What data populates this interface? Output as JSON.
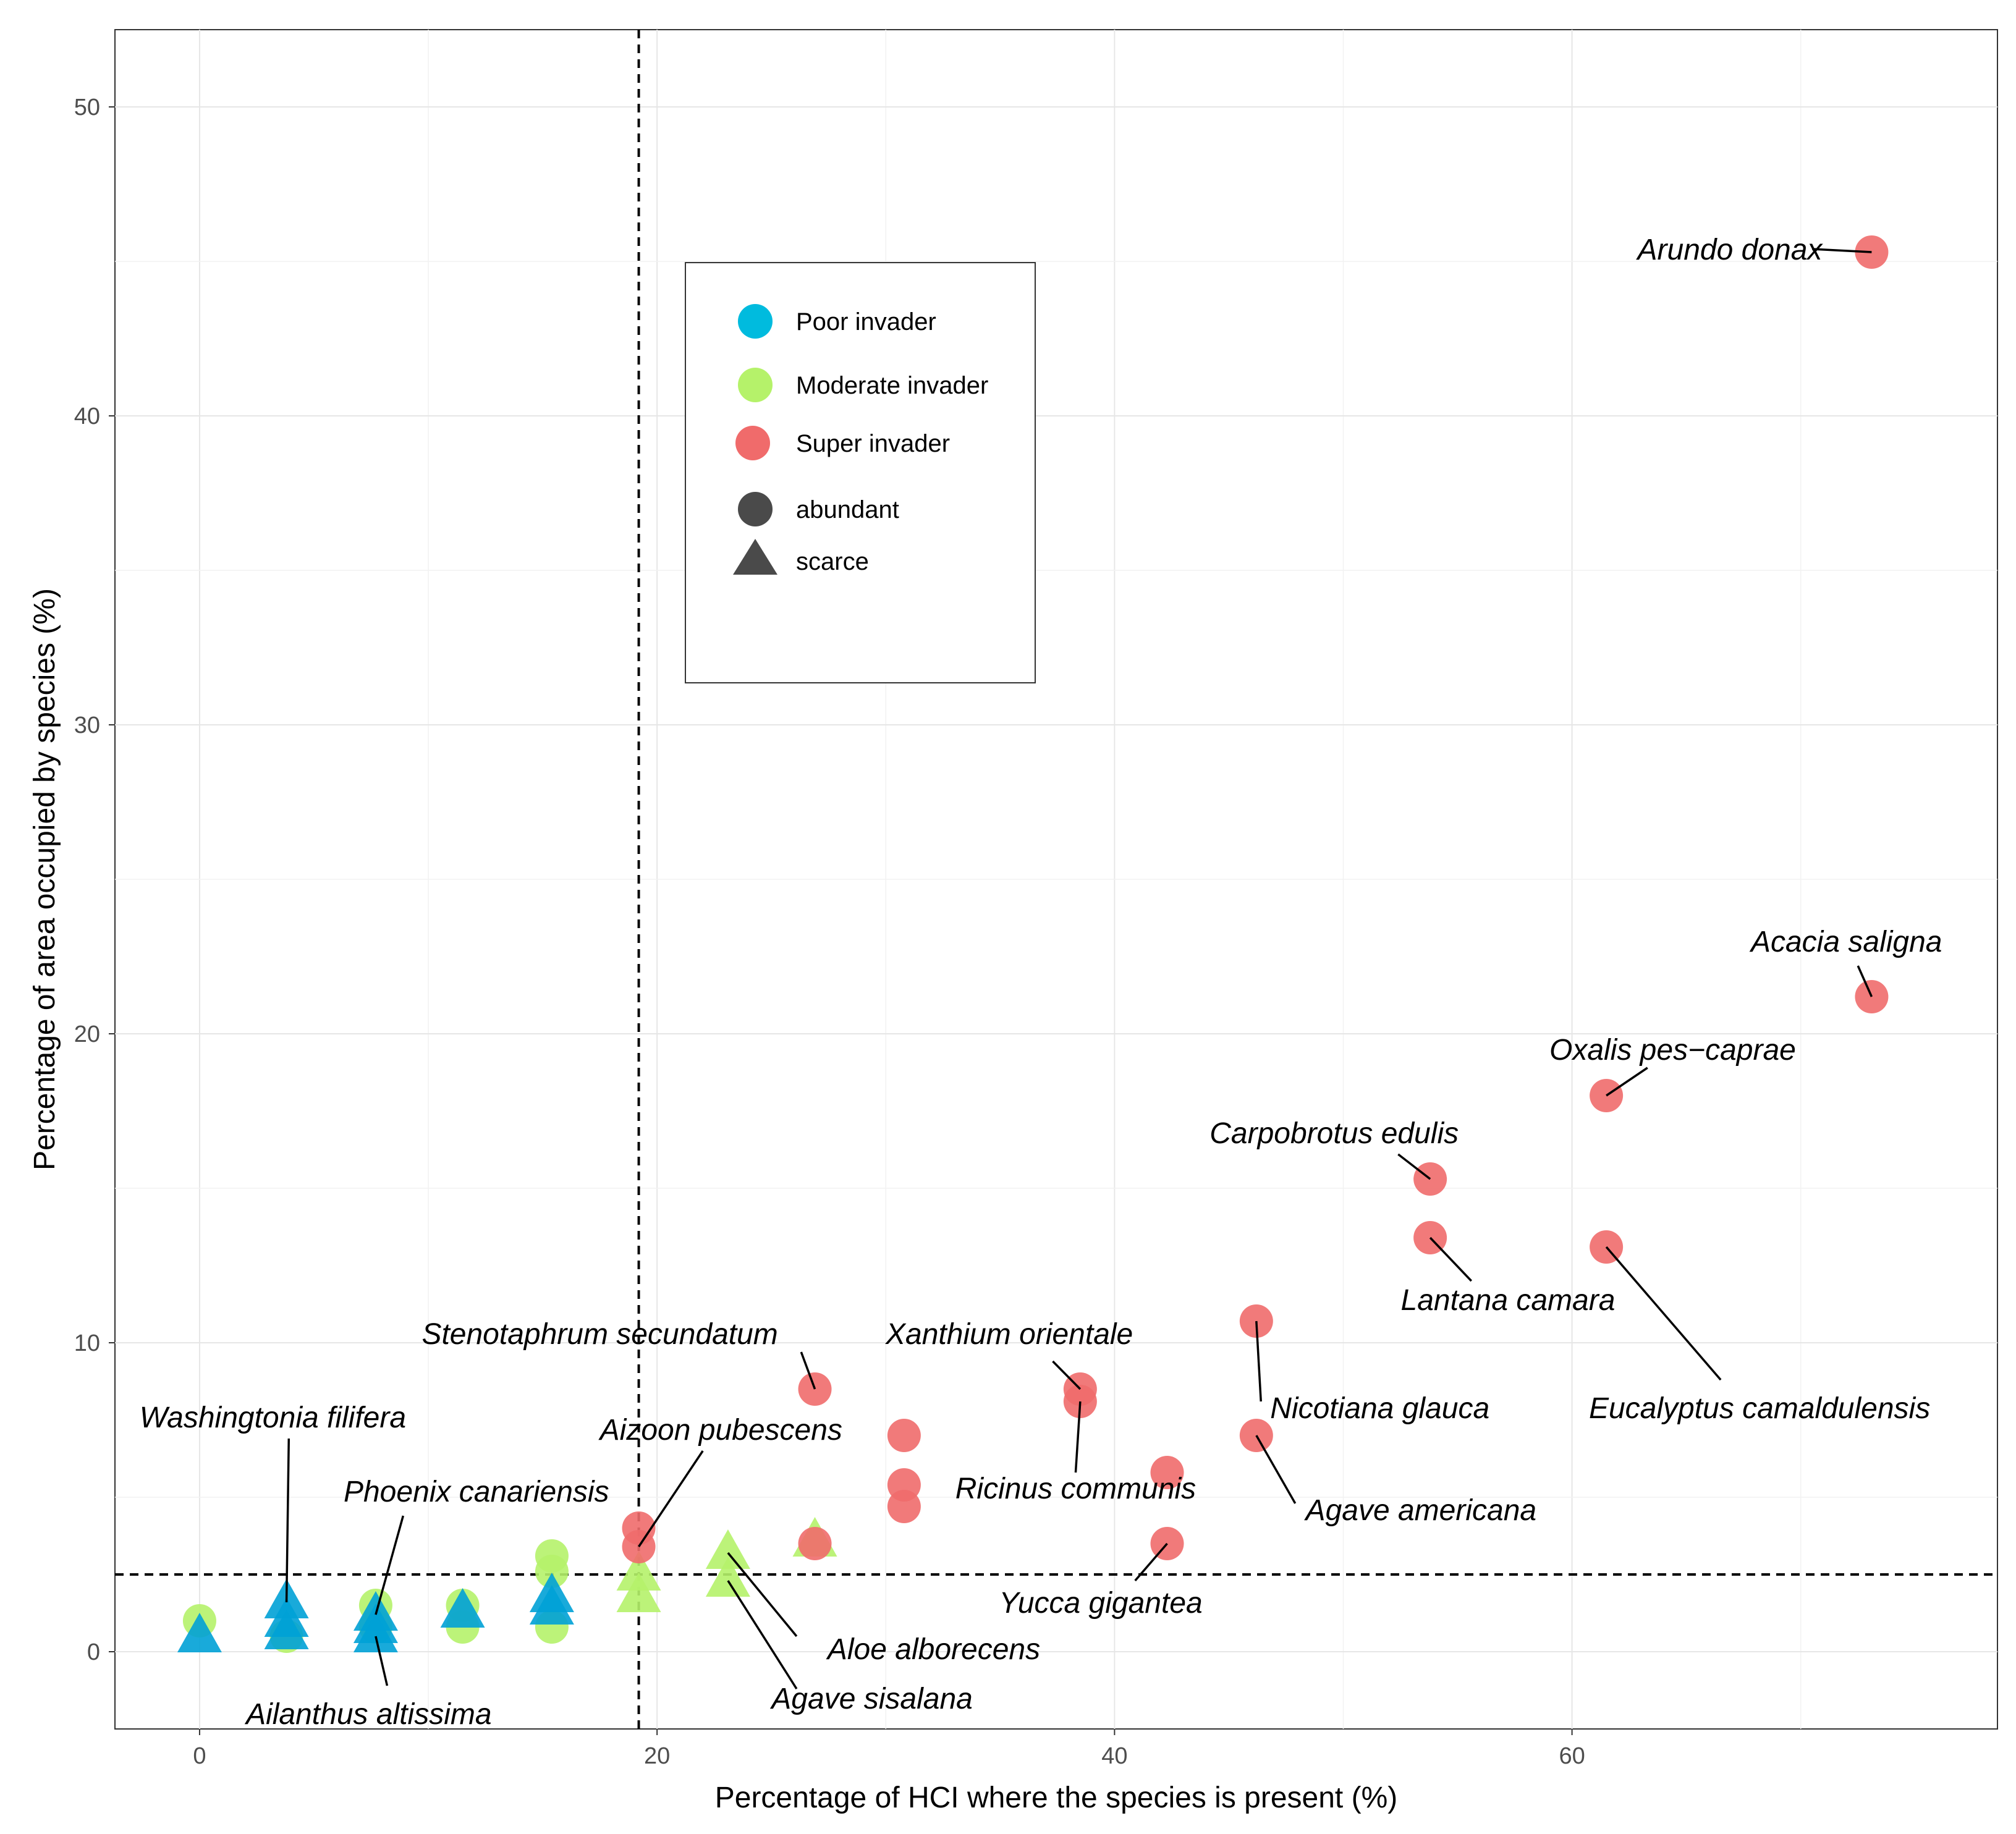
{
  "chart_data": {
    "type": "scatter",
    "title": "",
    "xlabel": "Percentage of HCI where the species is present (%)",
    "ylabel": "Percentage of area occupied by species (%)",
    "xlim": [
      -3.7,
      78.6
    ],
    "ylim": [
      -2.5,
      52.5
    ],
    "x_ticks": [
      0,
      20,
      40,
      60
    ],
    "y_ticks": [
      0,
      10,
      20,
      30,
      40,
      50
    ],
    "x_tick_labels": [
      "0",
      "20",
      "40",
      "60"
    ],
    "y_tick_labels": [
      "0",
      "10",
      "20",
      "30",
      "40",
      "50"
    ],
    "grid": true,
    "reference_lines": {
      "vertical_x": 19.2,
      "horizontal_y": 2.5,
      "style": "dashed"
    },
    "legend": {
      "placement": "upper-left-center",
      "items": [
        {
          "label": "Poor invader",
          "color": "#00BBDE",
          "shape": "circle"
        },
        {
          "label": "Moderate invader",
          "color": "#B5F26A",
          "shape": "circle"
        },
        {
          "label": "Super invader",
          "color": "#F06B6B",
          "shape": "circle"
        },
        {
          "label": "abundant",
          "color": "#4a4a4a",
          "shape": "circle"
        },
        {
          "label": "scarce",
          "color": "#4a4a4a",
          "shape": "triangle"
        }
      ]
    },
    "series": [
      {
        "name": "Moderate invader",
        "color": "#B5F26A",
        "points": [
          {
            "x": 0,
            "y": 1.0,
            "shape": "circle"
          },
          {
            "x": 3.8,
            "y": 0.5,
            "shape": "circle"
          },
          {
            "x": 7.7,
            "y": 1.5,
            "shape": "circle"
          },
          {
            "x": 7.7,
            "y": 0.8,
            "shape": "circle"
          },
          {
            "x": 11.5,
            "y": 1.5,
            "shape": "circle"
          },
          {
            "x": 11.5,
            "y": 0.8,
            "shape": "circle"
          },
          {
            "x": 15.4,
            "y": 3.1,
            "shape": "circle"
          },
          {
            "x": 15.4,
            "y": 2.6,
            "shape": "circle"
          },
          {
            "x": 15.4,
            "y": 0.8,
            "shape": "circle"
          },
          {
            "x": 19.2,
            "y": 2.5,
            "shape": "triangle"
          },
          {
            "x": 19.2,
            "y": 1.8,
            "shape": "triangle"
          },
          {
            "x": 23.1,
            "y": 3.2,
            "shape": "triangle"
          },
          {
            "x": 23.1,
            "y": 2.3,
            "shape": "triangle"
          },
          {
            "x": 26.9,
            "y": 3.6,
            "shape": "triangle"
          }
        ]
      },
      {
        "name": "Poor invader",
        "color": "#00A1D6",
        "points": [
          {
            "x": 0,
            "y": 0.5,
            "shape": "triangle"
          },
          {
            "x": 3.8,
            "y": 1.6,
            "shape": "triangle"
          },
          {
            "x": 3.8,
            "y": 1.0,
            "shape": "triangle"
          },
          {
            "x": 3.8,
            "y": 0.6,
            "shape": "triangle"
          },
          {
            "x": 7.7,
            "y": 1.2,
            "shape": "triangle"
          },
          {
            "x": 7.7,
            "y": 0.8,
            "shape": "triangle"
          },
          {
            "x": 7.7,
            "y": 0.5,
            "shape": "triangle"
          },
          {
            "x": 11.5,
            "y": 1.3,
            "shape": "triangle"
          },
          {
            "x": 15.4,
            "y": 1.8,
            "shape": "triangle"
          },
          {
            "x": 15.4,
            "y": 1.4,
            "shape": "triangle"
          }
        ]
      },
      {
        "name": "Super invader",
        "color": "#F06B6B",
        "points": [
          {
            "x": 19.2,
            "y": 4.0,
            "shape": "circle"
          },
          {
            "x": 19.2,
            "y": 3.4,
            "shape": "circle"
          },
          {
            "x": 26.9,
            "y": 8.5,
            "shape": "circle"
          },
          {
            "x": 26.9,
            "y": 3.5,
            "shape": "circle"
          },
          {
            "x": 30.8,
            "y": 7.0,
            "shape": "circle"
          },
          {
            "x": 30.8,
            "y": 5.4,
            "shape": "circle"
          },
          {
            "x": 30.8,
            "y": 4.7,
            "shape": "circle"
          },
          {
            "x": 38.5,
            "y": 8.5,
            "shape": "circle"
          },
          {
            "x": 38.5,
            "y": 8.1,
            "shape": "circle"
          },
          {
            "x": 42.3,
            "y": 5.8,
            "shape": "circle"
          },
          {
            "x": 42.3,
            "y": 3.5,
            "shape": "circle"
          },
          {
            "x": 46.2,
            "y": 10.7,
            "shape": "circle"
          },
          {
            "x": 46.2,
            "y": 7.0,
            "shape": "circle"
          },
          {
            "x": 53.8,
            "y": 15.3,
            "shape": "circle"
          },
          {
            "x": 53.8,
            "y": 13.4,
            "shape": "circle"
          },
          {
            "x": 61.5,
            "y": 18.0,
            "shape": "circle"
          },
          {
            "x": 61.5,
            "y": 13.1,
            "shape": "circle"
          },
          {
            "x": 73.1,
            "y": 45.3,
            "shape": "circle"
          },
          {
            "x": 73.1,
            "y": 21.2,
            "shape": "circle"
          }
        ]
      }
    ],
    "annotations": [
      {
        "text": "Arundo donax",
        "point": [
          73.1,
          45.3
        ],
        "label_pos": [
          66.9,
          45.4
        ],
        "anchor": "middle",
        "leader_from": [
          70.5,
          45.4
        ]
      },
      {
        "text": "Acacia saligna",
        "point": [
          73.1,
          21.2
        ],
        "label_pos": [
          72.0,
          23.0
        ],
        "anchor": "middle",
        "leader_from": [
          72.5,
          22.2
        ]
      },
      {
        "text": "Oxalis pes−caprae",
        "point": [
          61.5,
          18.0
        ],
        "label_pos": [
          64.4,
          19.5
        ],
        "anchor": "middle",
        "leader_from": [
          63.3,
          18.9
        ]
      },
      {
        "text": "Carpobrotus edulis",
        "point": [
          53.8,
          15.3
        ],
        "label_pos": [
          49.6,
          16.8
        ],
        "anchor": "middle",
        "leader_from": [
          52.4,
          16.1
        ]
      },
      {
        "text": "Lantana camara",
        "point": [
          53.8,
          13.4
        ],
        "label_pos": [
          57.2,
          11.4
        ],
        "anchor": "middle",
        "leader_from": [
          55.6,
          12.0
        ]
      },
      {
        "text": "Eucalyptus camaldulensis",
        "point": [
          61.5,
          13.1
        ],
        "label_pos": [
          68.2,
          7.9
        ],
        "anchor": "middle",
        "leader_from": [
          66.5,
          8.8
        ]
      },
      {
        "text": "Nicotiana glauca",
        "point": [
          46.2,
          10.7
        ],
        "label_pos": [
          51.6,
          7.9
        ],
        "anchor": "middle",
        "leader_from": [
          46.4,
          8.1
        ]
      },
      {
        "text": "Agave americana",
        "point": [
          46.2,
          7.0
        ],
        "label_pos": [
          53.4,
          4.6
        ],
        "anchor": "middle",
        "leader_from": [
          47.9,
          4.8
        ]
      },
      {
        "text": "Xanthium orientale",
        "point": [
          38.5,
          8.5
        ],
        "label_pos": [
          35.4,
          10.3
        ],
        "anchor": "middle",
        "leader_from": [
          37.3,
          9.4
        ]
      },
      {
        "text": "Ricinus communis",
        "point": [
          38.5,
          8.1
        ],
        "label_pos": [
          38.3,
          5.3
        ],
        "anchor": "middle",
        "leader_from": [
          38.3,
          5.8
        ]
      },
      {
        "text": "Yucca gigantea",
        "point": [
          42.3,
          3.5
        ],
        "label_pos": [
          39.4,
          1.6
        ],
        "anchor": "middle",
        "leader_from": [
          40.9,
          2.3
        ]
      },
      {
        "text": "Stenotaphrum secundatum",
        "point": [
          26.9,
          8.5
        ],
        "label_pos": [
          17.5,
          10.3
        ],
        "anchor": "middle",
        "leader_from": [
          26.3,
          9.7
        ]
      },
      {
        "text": "Aizoon pubescens",
        "point": [
          19.2,
          3.4
        ],
        "label_pos": [
          22.8,
          7.2
        ],
        "anchor": "middle",
        "leader_from": [
          22.0,
          6.5
        ]
      },
      {
        "text": "Aloe alborecens",
        "point": [
          23.1,
          3.2
        ],
        "label_pos": [
          32.1,
          0.1
        ],
        "anchor": "middle",
        "leader_from": [
          26.1,
          0.5
        ]
      },
      {
        "text": "Agave sisalana",
        "point": [
          23.1,
          2.3
        ],
        "label_pos": [
          29.4,
          -1.5
        ],
        "anchor": "middle",
        "leader_from": [
          26.1,
          -1.2
        ]
      },
      {
        "text": "Washingtonia filifera",
        "point": [
          3.8,
          1.6
        ],
        "label_pos": [
          3.2,
          7.6
        ],
        "anchor": "middle",
        "leader_from": [
          3.9,
          6.9
        ]
      },
      {
        "text": "Phoenix canariensis",
        "point": [
          7.7,
          1.2
        ],
        "label_pos": [
          12.1,
          5.2
        ],
        "anchor": "middle",
        "leader_from": [
          8.9,
          4.4
        ]
      },
      {
        "text": "Ailanthus altissima",
        "point": [
          7.7,
          0.5
        ],
        "label_pos": [
          7.4,
          -2.0
        ],
        "anchor": "middle",
        "leader_from": [
          8.2,
          -1.1
        ]
      }
    ]
  }
}
